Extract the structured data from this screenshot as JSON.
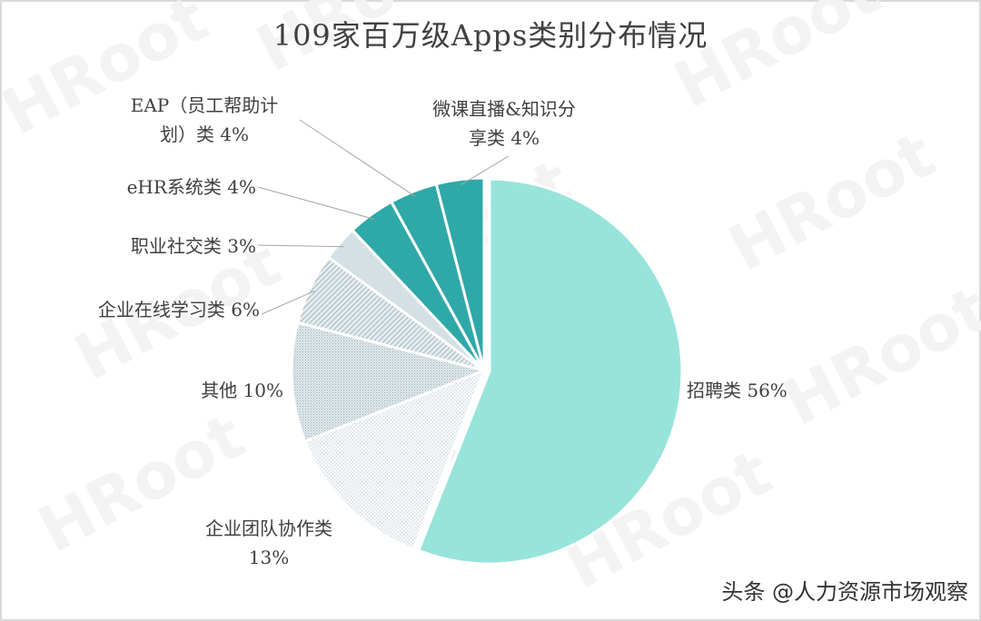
{
  "title": "109家百万级Apps类别分布情况",
  "source": "头条 @人力资源市场观察",
  "watermark": "HRoot",
  "chart_data": {
    "type": "pie",
    "title": "109家百万级Apps类别分布情况",
    "start_angle_deg": 0,
    "direction": "clockwise",
    "slices": [
      {
        "key": "zhaopin",
        "label": "招聘类",
        "pct": "56%",
        "value": 56,
        "color": "#97e4db"
      },
      {
        "key": "tuandui",
        "label": "企业团队协作类",
        "pct": "13%",
        "value": 13,
        "color": "#eef2f3"
      },
      {
        "key": "qita",
        "label": "其他",
        "pct": "10%",
        "value": 10,
        "color": "#d2dde2"
      },
      {
        "key": "zaixian",
        "label": "企业在线学习类",
        "pct": "6%",
        "value": 6,
        "color": "#dbe3e7"
      },
      {
        "key": "zhiye",
        "label": "职业社交类",
        "pct": "3%",
        "value": 3,
        "color": "#d4e0e4"
      },
      {
        "key": "ehr",
        "label": "eHR系统类",
        "pct": "4%",
        "value": 4,
        "color": "#2fa8a8"
      },
      {
        "key": "eap",
        "label": "EAP（员工帮助计划）类",
        "pct": "4%",
        "value": 4,
        "color": "#2fa8a8"
      },
      {
        "key": "weike",
        "label": "微课直播&知识分享类",
        "pct": "4%",
        "value": 4,
        "color": "#2fa8a8"
      }
    ]
  },
  "labels": {
    "zhaopin": {
      "text": "招聘类  56%"
    },
    "tuandui": {
      "line1": "企业团队协作类",
      "line2": "13%"
    },
    "qita": {
      "text": "其他  10%"
    },
    "zaixian": {
      "text": "企业在线学习类  6%"
    },
    "zhiye": {
      "text": "职业社交类  3%"
    },
    "ehr": {
      "text": "eHR系统类  4%"
    },
    "eap": {
      "line1": "EAP（员工帮助计",
      "line2": "划）类  4%"
    },
    "weike": {
      "line1": "微课直播&知识分",
      "line2": "享类  4%"
    }
  }
}
